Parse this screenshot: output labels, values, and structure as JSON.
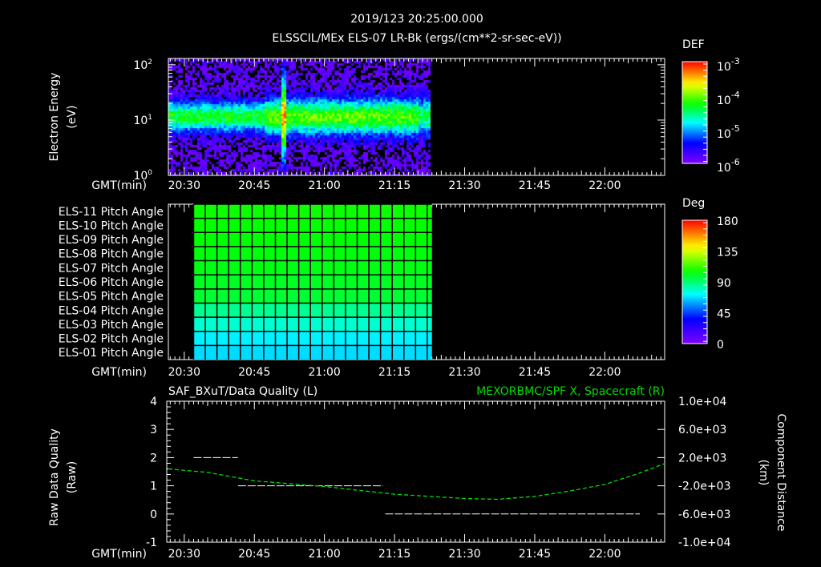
{
  "header": {
    "title": "2019/123 20:25:00.000",
    "subtitle": "ELSSCIL/MEx ELS-07 LR-Bk  (ergs/(cm**2-sr-sec-eV))"
  },
  "colors": {
    "axis": "#ffffff",
    "background": "#000000",
    "green_series": "#00dd00"
  },
  "time_axis": {
    "label": "GMT(min)",
    "ticks": [
      "20:30",
      "20:45",
      "21:00",
      "21:15",
      "21:30",
      "21:45",
      "22:00"
    ],
    "tick_minutes": [
      30,
      45,
      60,
      75,
      90,
      105,
      120
    ],
    "range_minutes": [
      26.6,
      132.8
    ]
  },
  "chart_data": [
    {
      "type": "heatmap",
      "title": "ELSSCIL/MEx ELS-07 LR-Bk",
      "ylabel": [
        "Electron Energy",
        "(eV)"
      ],
      "yscale": "log",
      "ylim": [
        1,
        130
      ],
      "yticks": [
        {
          "base": "10",
          "exp": "0",
          "value": 1
        },
        {
          "base": "10",
          "exp": "1",
          "value": 10
        },
        {
          "base": "10",
          "exp": "2",
          "value": 100
        }
      ],
      "data_time_range": [
        "20:26",
        "21:23"
      ],
      "peak_energy_eV": 12,
      "spike_time": "20:51",
      "colorbar": {
        "label": "DEF",
        "scale": "log",
        "range": [
          1e-06,
          0.001
        ],
        "ticks": [
          {
            "base": "10",
            "exp": "-3"
          },
          {
            "base": "10",
            "exp": "-4"
          },
          {
            "base": "10",
            "exp": "-5"
          },
          {
            "base": "10",
            "exp": "-6"
          }
        ]
      }
    },
    {
      "type": "heatmap",
      "rows": [
        "ELS-11 Pitch Angle",
        "ELS-10 Pitch Angle",
        "ELS-09 Pitch Angle",
        "ELS-08 Pitch Angle",
        "ELS-07 Pitch Angle",
        "ELS-06 Pitch Angle",
        "ELS-05 Pitch Angle",
        "ELS-04 Pitch Angle",
        "ELS-03 Pitch Angle",
        "ELS-02 Pitch Angle",
        "ELS-01 Pitch Angle"
      ],
      "values_deg": [
        106,
        105,
        104,
        103,
        102,
        100,
        98,
        86,
        78,
        70,
        67
      ],
      "data_time_range_minutes": [
        32,
        83
      ],
      "colorbar": {
        "label": "Deg",
        "range": [
          0,
          180
        ],
        "ticks": [
          "180",
          "135",
          "90",
          "45",
          "0"
        ]
      }
    },
    {
      "type": "line",
      "title_left": "SAF_BXuT/Data Quality (L)",
      "title_right": "MEXORBMC/SPF X, Spacecraft (R)",
      "ylabel_left": [
        "Raw Data Quality",
        "(Raw)"
      ],
      "ylabel_right": [
        "Component Distance",
        "(km)"
      ],
      "ylim_left": [
        -1,
        4
      ],
      "ylim_right": [
        -10000,
        10000
      ],
      "yticks_left": [
        "4",
        "3",
        "2",
        "1",
        "0",
        "-1"
      ],
      "yticks_right": [
        "1.0e+04",
        "6.0e+03",
        "2.0e+03",
        "-2.0e+03",
        "-6.0e+03",
        "-1.0e+04"
      ],
      "data_quality_segments": [
        {
          "start_min": 32,
          "end_min": 41.5,
          "value": 2
        },
        {
          "start_min": 41.5,
          "end_min": 72.5,
          "value": 1
        },
        {
          "start_min": 73,
          "end_min": 127.5,
          "value": 0
        }
      ],
      "spacecraft_x": {
        "minutes": [
          26.6,
          35,
          45,
          60,
          75,
          90,
          97,
          105,
          112,
          120,
          127,
          132.8
        ],
        "km": [
          400,
          -100,
          -1300,
          -2100,
          -3200,
          -3800,
          -3920,
          -3500,
          -2800,
          -1800,
          -300,
          1150
        ]
      }
    }
  ]
}
